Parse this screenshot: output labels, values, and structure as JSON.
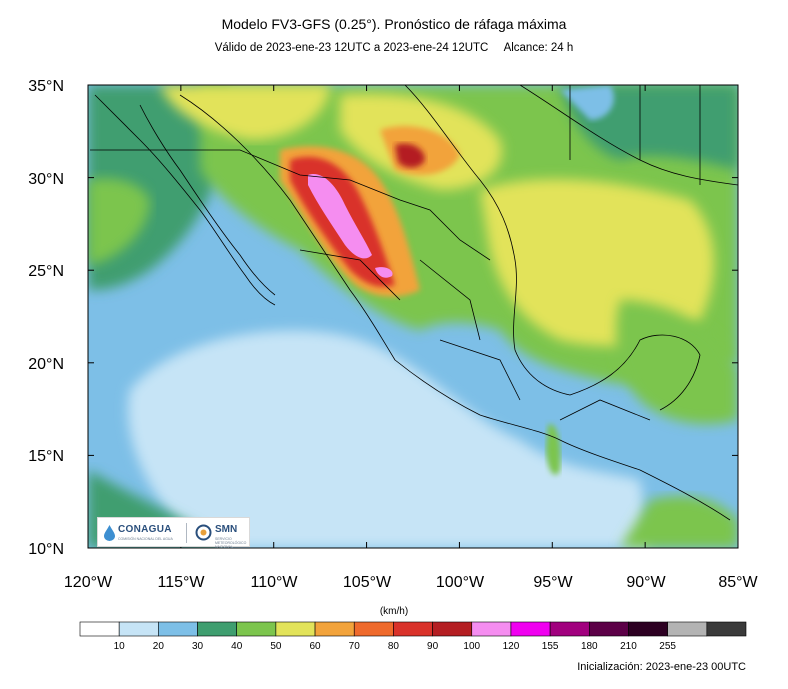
{
  "header": {
    "title": "Modelo FV3-GFS (0.25°). Pronóstico de ráfaga máxima",
    "valid": "Válido de 2023-ene-23 12UTC a 2023-ene-24 12UTC",
    "range": "Alcance: 24 h"
  },
  "map": {
    "lat_labels": [
      "35°N",
      "30°N",
      "25°N",
      "20°N",
      "15°N",
      "10°N"
    ],
    "lon_labels": [
      "120°W",
      "115°W",
      "110°W",
      "105°W",
      "100°W",
      "95°W",
      "90°W",
      "85°W"
    ],
    "extent": {
      "lon": [
        -120,
        -85
      ],
      "lat": [
        10,
        35
      ]
    }
  },
  "legend": {
    "units": "(km/h)",
    "ticks": [
      "10",
      "20",
      "30",
      "40",
      "50",
      "60",
      "70",
      "80",
      "90",
      "100",
      "120",
      "155",
      "180",
      "210",
      "255"
    ],
    "colors": [
      "#ffffff",
      "#c6e4f6",
      "#7dbfe7",
      "#3f9e6f",
      "#7cc54d",
      "#e2e35a",
      "#f2a33b",
      "#ef6a2c",
      "#d9322a",
      "#b41e22",
      "#f58df0",
      "#f000f0",
      "#a1007e",
      "#5c0047",
      "#2d0022",
      "#b3b3b3",
      "#3a3a3a"
    ]
  },
  "footer": {
    "init": "Inicialización: 2023-ene-23 00UTC"
  },
  "logos": {
    "conagua": "CONAGUA",
    "conagua_sub": "COMISIÓN NACIONAL DEL AGUA",
    "smn": "SMN",
    "smn_sub": "SERVICIO METEOROLÓGICO NACIONAL"
  }
}
